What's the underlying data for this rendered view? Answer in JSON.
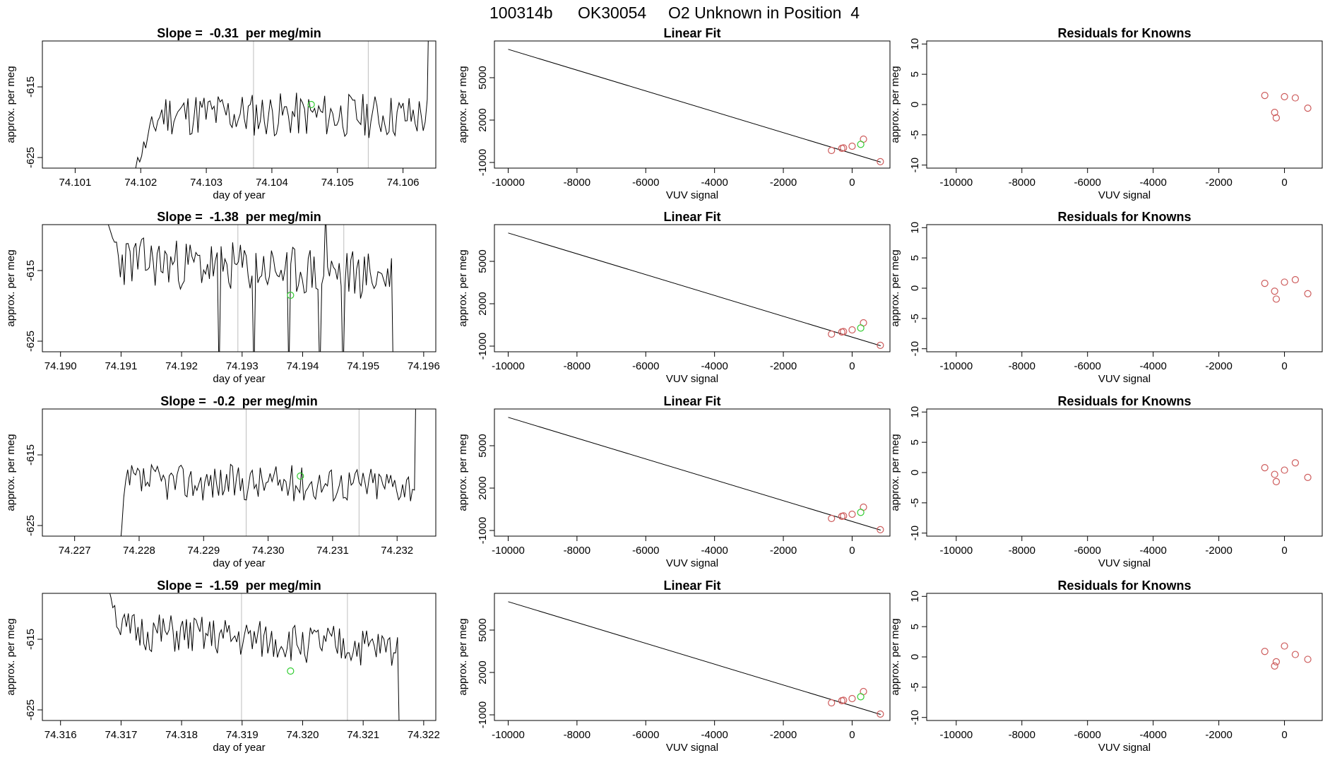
{
  "figure_title": {
    "run": "100314b",
    "tank": "OK30054",
    "description": "O2 Unknown in Position  4"
  },
  "colors": {
    "trace": "#000000",
    "known_point": "#cd5c5c",
    "unknown_point": "#32cd32",
    "vline": "#bebebe",
    "frame": "#000000"
  },
  "chart_data": [
    {
      "id": "ts-1",
      "type": "line",
      "title": "Slope =  -0.31  per meg/min",
      "xlabel": "day of year",
      "ylabel": "approx. per meg",
      "xlim": [
        74.1005,
        74.1065
      ],
      "ylim": [
        -626.5,
        -608.5
      ],
      "xticks": [
        74.101,
        74.102,
        74.103,
        74.104,
        74.105,
        74.106
      ],
      "xdec": 3,
      "yticks": [
        -615,
        -625
      ],
      "t_start": 74.1018,
      "t_end": 74.1064,
      "rise_end": 74.1023,
      "end_jump": -600,
      "baseline": -619,
      "slope": -0.31,
      "noise": 3.2,
      "seed": 11,
      "vlines": [
        74.10372,
        74.10547
      ],
      "unknown_point": {
        "x": 74.1046,
        "y": -617.5
      }
    },
    {
      "id": "ts-2",
      "type": "line",
      "title": "Slope =  -1.38  per meg/min",
      "xlabel": "day of year",
      "ylabel": "approx. per meg",
      "xlim": [
        74.1897,
        74.1962
      ],
      "ylim": [
        -626.5,
        -608.5
      ],
      "xticks": [
        74.19,
        74.191,
        74.192,
        74.193,
        74.194,
        74.195,
        74.196
      ],
      "xdec": 3,
      "yticks": [
        -615,
        -625
      ],
      "t_start": 74.1907,
      "t_end": 74.1955,
      "rise_end": 74.191,
      "start_y": -607,
      "end_jump": -632,
      "baseline": -615,
      "slope": -1.38,
      "noise": 3.6,
      "seed": 23,
      "vlines": [
        74.19293,
        74.19468
      ],
      "unknown_point": {
        "x": 74.1938,
        "y": -618.5
      }
    },
    {
      "id": "ts-3",
      "type": "line",
      "title": "Slope =  -0.2  per meg/min",
      "xlabel": "day of year",
      "ylabel": "approx. per meg",
      "xlim": [
        74.2265,
        74.2326
      ],
      "ylim": [
        -626.5,
        -608.5
      ],
      "xticks": [
        74.227,
        74.228,
        74.229,
        74.23,
        74.231,
        74.232
      ],
      "xdec": 3,
      "yticks": [
        -615,
        -625
      ],
      "t_start": 74.2277,
      "t_end": 74.2323,
      "rise_end": 74.2278,
      "end_jump": -600,
      "baseline": -619,
      "slope": -0.2,
      "noise": 2.6,
      "seed": 37,
      "vlines": [
        74.22966,
        74.23141
      ],
      "unknown_point": {
        "x": 74.2305,
        "y": -618.0
      }
    },
    {
      "id": "ts-4",
      "type": "line",
      "title": "Slope =  -1.59  per meg/min",
      "xlabel": "day of year",
      "ylabel": "approx. per meg",
      "xlim": [
        74.3157,
        74.3222
      ],
      "ylim": [
        -626.5,
        -608.5
      ],
      "xticks": [
        74.316,
        74.317,
        74.318,
        74.319,
        74.32,
        74.321,
        74.322
      ],
      "xdec": 3,
      "yticks": [
        -615,
        -625
      ],
      "t_start": 74.3168,
      "t_end": 74.3216,
      "rise_end": 74.317,
      "start_y": -608,
      "end_jump": -630,
      "baseline": -615.5,
      "slope": -1.59,
      "noise": 2.8,
      "seed": 51,
      "vlines": [
        74.31899,
        74.32074
      ],
      "unknown_point": {
        "x": 74.3198,
        "y": -619.5
      }
    },
    {
      "id": "fit-1",
      "type": "line",
      "title": "Linear Fit",
      "xlabel": "VUV signal",
      "ylabel": "approx. per meg",
      "xlim": [
        -10400,
        1100
      ],
      "ylim": [
        -1400,
        7600
      ],
      "xticks": [
        -10000,
        -8000,
        -6000,
        -4000,
        -2000,
        0
      ],
      "yticks": [
        -1000,
        2000,
        5000
      ],
      "line": {
        "x": [
          -10000,
          830
        ],
        "y": [
          7010,
          -975
        ]
      },
      "known_points": {
        "x": [
          -600,
          -300,
          -250,
          0,
          330,
          820
        ],
        "y": [
          -150,
          0,
          30,
          150,
          650,
          -945
        ]
      },
      "unknown_point": {
        "x": 250,
        "y": 280
      }
    },
    {
      "id": "fit-2",
      "type": "line",
      "title": "Linear Fit",
      "xlabel": "VUV signal",
      "ylabel": "approx. per meg",
      "xlim": [
        -10400,
        1100
      ],
      "ylim": [
        -1400,
        7600
      ],
      "xticks": [
        -10000,
        -8000,
        -6000,
        -4000,
        -2000,
        0
      ],
      "yticks": [
        -1000,
        2000,
        5000
      ],
      "line": {
        "x": [
          -10000,
          830
        ],
        "y": [
          7010,
          -975
        ]
      },
      "known_points": {
        "x": [
          -600,
          -300,
          -250,
          0,
          330,
          820
        ],
        "y": [
          -150,
          0,
          30,
          150,
          650,
          -945
        ]
      },
      "unknown_point": {
        "x": 250,
        "y": 280
      }
    },
    {
      "id": "fit-3",
      "type": "line",
      "title": "Linear Fit",
      "xlabel": "VUV signal",
      "ylabel": "approx. per meg",
      "xlim": [
        -10400,
        1100
      ],
      "ylim": [
        -1400,
        7600
      ],
      "xticks": [
        -10000,
        -8000,
        -6000,
        -4000,
        -2000,
        0
      ],
      "yticks": [
        -1000,
        2000,
        5000
      ],
      "line": {
        "x": [
          -10000,
          830
        ],
        "y": [
          7010,
          -975
        ]
      },
      "known_points": {
        "x": [
          -600,
          -300,
          -250,
          0,
          330,
          820
        ],
        "y": [
          -150,
          0,
          30,
          150,
          650,
          -945
        ]
      },
      "unknown_point": {
        "x": 250,
        "y": 280
      }
    },
    {
      "id": "fit-4",
      "type": "line",
      "title": "Linear Fit",
      "xlabel": "VUV signal",
      "ylabel": "approx. per meg",
      "xlim": [
        -10400,
        1100
      ],
      "ylim": [
        -1400,
        7600
      ],
      "xticks": [
        -10000,
        -8000,
        -6000,
        -4000,
        -2000,
        0
      ],
      "yticks": [
        -1000,
        2000,
        5000
      ],
      "line": {
        "x": [
          -10000,
          830
        ],
        "y": [
          7010,
          -975
        ]
      },
      "known_points": {
        "x": [
          -600,
          -300,
          -250,
          0,
          330,
          820
        ],
        "y": [
          -150,
          0,
          30,
          150,
          650,
          -945
        ]
      },
      "unknown_point": {
        "x": 250,
        "y": 280
      }
    },
    {
      "id": "res-1",
      "type": "scatter",
      "title": "Residuals for Knowns",
      "xlabel": "VUV signal",
      "ylabel": "approx. per meg",
      "xlim": [
        -10900,
        1150
      ],
      "ylim": [
        -10.5,
        10.5
      ],
      "xticks": [
        -10000,
        -8000,
        -6000,
        -4000,
        -2000,
        0
      ],
      "yticks": [
        -10,
        -5,
        0,
        5,
        10
      ],
      "known_points": {
        "x": [
          -600,
          -300,
          -250,
          0,
          330,
          710
        ],
        "y": [
          1.5,
          -1.3,
          -2.2,
          1.3,
          1.1,
          -0.6
        ]
      }
    },
    {
      "id": "res-2",
      "type": "scatter",
      "title": "Residuals for Knowns",
      "xlabel": "VUV signal",
      "ylabel": "approx. per meg",
      "xlim": [
        -10900,
        1150
      ],
      "ylim": [
        -10.5,
        10.5
      ],
      "xticks": [
        -10000,
        -8000,
        -6000,
        -4000,
        -2000,
        0
      ],
      "yticks": [
        -10,
        -5,
        0,
        5,
        10
      ],
      "known_points": {
        "x": [
          -600,
          -300,
          -250,
          0,
          330,
          710
        ],
        "y": [
          0.8,
          -0.5,
          -1.8,
          1.0,
          1.4,
          -0.9
        ]
      }
    },
    {
      "id": "res-3",
      "type": "scatter",
      "title": "Residuals for Knowns",
      "xlabel": "VUV signal",
      "ylabel": "approx. per meg",
      "xlim": [
        -10900,
        1150
      ],
      "ylim": [
        -10.5,
        10.5
      ],
      "xticks": [
        -10000,
        -8000,
        -6000,
        -4000,
        -2000,
        0
      ],
      "yticks": [
        -10,
        -5,
        0,
        5,
        10
      ],
      "known_points": {
        "x": [
          -600,
          -300,
          -250,
          0,
          330,
          710
        ],
        "y": [
          0.8,
          -0.3,
          -1.5,
          0.4,
          1.6,
          -0.8
        ]
      }
    },
    {
      "id": "res-4",
      "type": "scatter",
      "title": "Residuals for Knowns",
      "xlabel": "VUV signal",
      "ylabel": "approx. per meg",
      "xlim": [
        -10900,
        1150
      ],
      "ylim": [
        -10.5,
        10.5
      ],
      "xticks": [
        -10000,
        -8000,
        -6000,
        -4000,
        -2000,
        0
      ],
      "yticks": [
        -10,
        -5,
        0,
        5,
        10
      ],
      "known_points": {
        "x": [
          -600,
          -300,
          -250,
          0,
          330,
          710
        ],
        "y": [
          0.9,
          -1.5,
          -0.8,
          1.8,
          0.4,
          -0.4
        ]
      }
    }
  ]
}
